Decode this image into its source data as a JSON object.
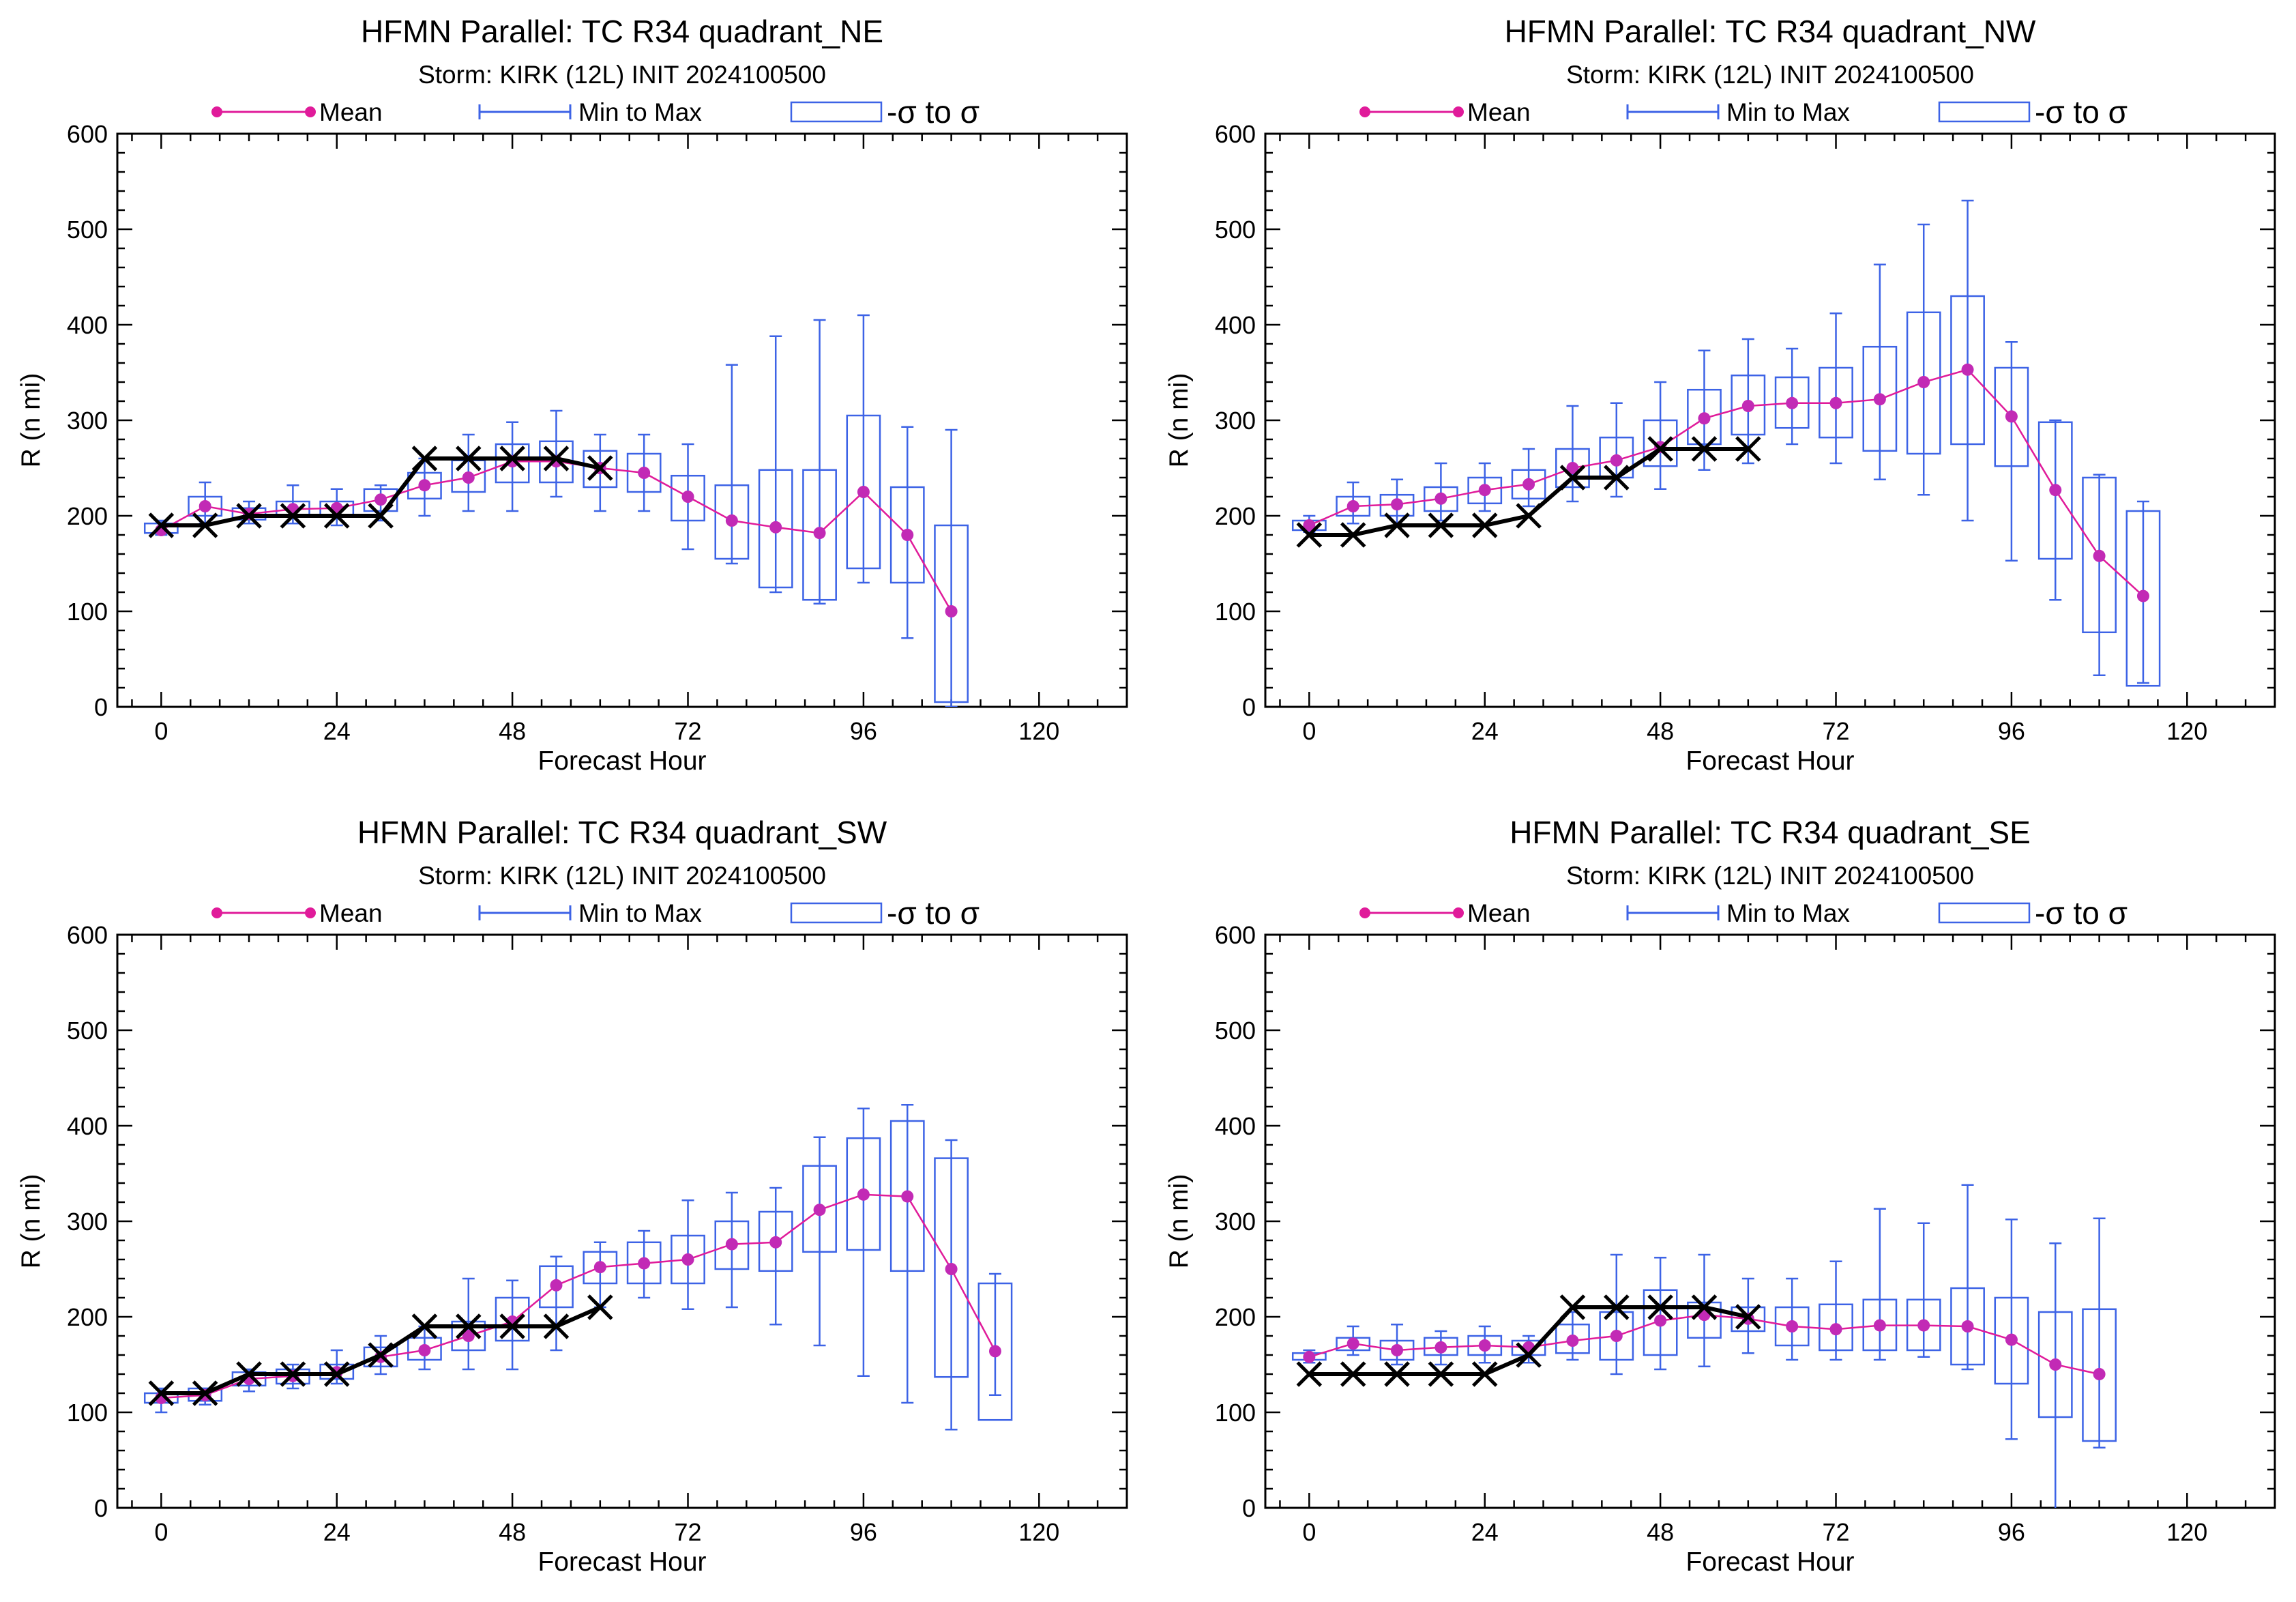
{
  "colors": {
    "mean": "#e01b9a",
    "mean_marker": "#c22ab5",
    "box": "#3d63e6",
    "best_track": "#000000",
    "frame": "#000000",
    "background": "#ffffff"
  },
  "legend": {
    "mean_label": "Mean",
    "minmax_label": "Min to Max",
    "sigma_label": "-σ to σ"
  },
  "chart_data": [
    {
      "type": "box",
      "title": "HFMN Parallel: TC  R34 quadrant_NE",
      "subtitle": "Storm: KIRK (12L) INIT 2024100500",
      "xlabel": "Forecast Hour",
      "ylabel": "R (n mi)",
      "xlim": [
        -6,
        132
      ],
      "ylim": [
        0,
        600
      ],
      "xticks": [
        0,
        24,
        48,
        72,
        96,
        120
      ],
      "yticks": [
        0,
        100,
        200,
        300,
        400,
        500,
        600
      ],
      "x": [
        0,
        6,
        12,
        18,
        24,
        30,
        36,
        42,
        48,
        54,
        60,
        66,
        72,
        78,
        84,
        90,
        96,
        102,
        108
      ],
      "mean": [
        185,
        210,
        202,
        207,
        208,
        217,
        232,
        240,
        257,
        257,
        250,
        245,
        220,
        195,
        188,
        182,
        225,
        180,
        100
      ],
      "sigma_low": [
        182,
        200,
        196,
        200,
        200,
        205,
        218,
        225,
        235,
        235,
        230,
        225,
        195,
        155,
        125,
        112,
        145,
        130,
        5
      ],
      "sigma_high": [
        192,
        220,
        208,
        215,
        215,
        228,
        245,
        258,
        275,
        278,
        268,
        265,
        242,
        232,
        248,
        248,
        305,
        230,
        190
      ],
      "min": [
        180,
        192,
        192,
        192,
        190,
        195,
        200,
        205,
        205,
        220,
        205,
        205,
        165,
        150,
        120,
        108,
        130,
        72,
        0
      ],
      "max": [
        195,
        235,
        215,
        232,
        228,
        232,
        260,
        285,
        298,
        310,
        285,
        285,
        275,
        358,
        388,
        405,
        410,
        293,
        290
      ],
      "best_track_x": [
        0,
        6,
        12,
        18,
        24,
        30,
        36,
        42,
        48,
        54,
        60
      ],
      "best_track_y": [
        190,
        190,
        200,
        200,
        200,
        200,
        260,
        260,
        260,
        260,
        250
      ]
    },
    {
      "type": "box",
      "title": "HFMN Parallel: TC  R34 quadrant_NW",
      "subtitle": "Storm: KIRK (12L) INIT 2024100500",
      "xlabel": "Forecast Hour",
      "ylabel": "R (n mi)",
      "xlim": [
        -6,
        132
      ],
      "ylim": [
        0,
        600
      ],
      "xticks": [
        0,
        24,
        48,
        72,
        96,
        120
      ],
      "yticks": [
        0,
        100,
        200,
        300,
        400,
        500,
        600
      ],
      "x": [
        0,
        6,
        12,
        18,
        24,
        30,
        36,
        42,
        48,
        54,
        60,
        66,
        72,
        78,
        84,
        90,
        96,
        102,
        108,
        114
      ],
      "mean": [
        190,
        210,
        212,
        218,
        227,
        233,
        250,
        258,
        272,
        302,
        315,
        318,
        318,
        322,
        340,
        353,
        304,
        227,
        158,
        116
      ],
      "sigma_low": [
        185,
        200,
        200,
        205,
        213,
        218,
        230,
        240,
        252,
        275,
        285,
        292,
        282,
        268,
        265,
        275,
        252,
        155,
        78,
        22
      ],
      "sigma_high": [
        195,
        220,
        222,
        230,
        240,
        248,
        270,
        282,
        300,
        332,
        347,
        345,
        355,
        377,
        413,
        430,
        355,
        298,
        240,
        205
      ],
      "min": [
        183,
        192,
        190,
        195,
        205,
        210,
        215,
        220,
        228,
        248,
        255,
        275,
        255,
        238,
        222,
        195,
        153,
        112,
        33,
        25
      ],
      "max": [
        200,
        235,
        238,
        255,
        255,
        270,
        315,
        318,
        340,
        373,
        385,
        375,
        412,
        463,
        505,
        530,
        382,
        300,
        243,
        215
      ],
      "best_track_x": [
        0,
        6,
        12,
        18,
        24,
        30,
        36,
        42,
        48,
        54,
        60
      ],
      "best_track_y": [
        180,
        180,
        190,
        190,
        190,
        200,
        240,
        240,
        270,
        270,
        270
      ]
    },
    {
      "type": "box",
      "title": "HFMN Parallel: TC  R34 quadrant_SW",
      "subtitle": "Storm: KIRK (12L) INIT 2024100500",
      "xlabel": "Forecast Hour",
      "ylabel": "R (n mi)",
      "xlim": [
        -6,
        132
      ],
      "ylim": [
        0,
        600
      ],
      "xticks": [
        0,
        24,
        48,
        72,
        96,
        120
      ],
      "yticks": [
        0,
        100,
        200,
        300,
        400,
        500,
        600
      ],
      "x": [
        0,
        6,
        12,
        18,
        24,
        30,
        36,
        42,
        48,
        54,
        60,
        66,
        72,
        78,
        84,
        90,
        96,
        102,
        108,
        114
      ],
      "mean": [
        115,
        118,
        135,
        138,
        142,
        158,
        165,
        180,
        195,
        233,
        252,
        256,
        260,
        276,
        278,
        312,
        328,
        326,
        250,
        164
      ],
      "sigma_low": [
        110,
        112,
        128,
        130,
        135,
        148,
        155,
        165,
        175,
        210,
        235,
        235,
        235,
        250,
        248,
        268,
        270,
        248,
        137,
        92
      ],
      "sigma_high": [
        120,
        125,
        142,
        145,
        150,
        168,
        178,
        195,
        220,
        253,
        268,
        278,
        285,
        300,
        310,
        358,
        387,
        405,
        366,
        235
      ],
      "min": [
        100,
        108,
        122,
        125,
        130,
        140,
        145,
        145,
        145,
        165,
        210,
        220,
        208,
        210,
        192,
        170,
        138,
        110,
        82,
        118
      ],
      "max": [
        125,
        125,
        145,
        150,
        165,
        180,
        190,
        240,
        238,
        263,
        278,
        290,
        322,
        330,
        335,
        388,
        418,
        422,
        385,
        245
      ],
      "best_track_x": [
        0,
        6,
        12,
        18,
        24,
        30,
        36,
        42,
        48,
        54,
        60
      ],
      "best_track_y": [
        120,
        120,
        140,
        140,
        140,
        160,
        190,
        190,
        190,
        190,
        210
      ]
    },
    {
      "type": "box",
      "title": "HFMN Parallel: TC  R34 quadrant_SE",
      "subtitle": "Storm: KIRK (12L) INIT 2024100500",
      "xlabel": "Forecast Hour",
      "ylabel": "R (n mi)",
      "xlim": [
        -6,
        132
      ],
      "ylim": [
        0,
        600
      ],
      "xticks": [
        0,
        24,
        48,
        72,
        96,
        120
      ],
      "yticks": [
        0,
        100,
        200,
        300,
        400,
        500,
        600
      ],
      "x": [
        0,
        6,
        12,
        18,
        24,
        30,
        36,
        42,
        48,
        54,
        60,
        66,
        72,
        78,
        84,
        90,
        96,
        102,
        108
      ],
      "mean": [
        158,
        172,
        165,
        168,
        170,
        168,
        175,
        180,
        196,
        202,
        198,
        190,
        187,
        191,
        191,
        190,
        176,
        150,
        140
      ],
      "sigma_low": [
        155,
        165,
        155,
        160,
        160,
        160,
        162,
        155,
        160,
        178,
        185,
        170,
        165,
        165,
        165,
        150,
        130,
        95,
        70
      ],
      "sigma_high": [
        162,
        178,
        175,
        178,
        180,
        175,
        192,
        205,
        228,
        215,
        210,
        210,
        213,
        218,
        218,
        230,
        220,
        205,
        208
      ],
      "min": [
        152,
        160,
        150,
        150,
        152,
        152,
        155,
        140,
        145,
        148,
        162,
        155,
        155,
        155,
        158,
        145,
        72,
        -5,
        63
      ],
      "max": [
        165,
        190,
        192,
        185,
        190,
        180,
        205,
        265,
        262,
        265,
        240,
        240,
        258,
        313,
        298,
        338,
        302,
        277,
        303
      ],
      "best_track_x": [
        0,
        6,
        12,
        18,
        24,
        30,
        36,
        42,
        48,
        54,
        60
      ],
      "best_track_y": [
        140,
        140,
        140,
        140,
        140,
        160,
        210,
        210,
        210,
        210,
        200
      ]
    }
  ]
}
